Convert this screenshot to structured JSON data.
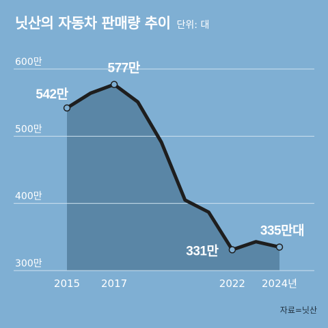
{
  "title": "닛산의 자동차 판매량 추이",
  "unit_label": "단위: 대",
  "source": "자료=닛산",
  "colors": {
    "background": "#7fafd3",
    "area_fill": "#5a86a6",
    "line": "#1e1e1e",
    "grid": "#cfe1ef",
    "marker_fill": "#7fafd3"
  },
  "chart_data": {
    "type": "area",
    "x": [
      2015,
      2016,
      2017,
      2018,
      2019,
      2020,
      2021,
      2022,
      2023,
      2024
    ],
    "x_tick_labels": [
      {
        "x": 2015,
        "label": "2015"
      },
      {
        "x": 2017,
        "label": "2017"
      },
      {
        "x": 2022,
        "label": "2022"
      },
      {
        "x": 2024,
        "label": "2024년"
      }
    ],
    "series": [
      {
        "values": [
          542,
          564,
          577,
          551,
          491,
          405,
          387,
          331,
          343,
          335
        ]
      }
    ],
    "y_unit": "만",
    "ylim": [
      300,
      600
    ],
    "y_ticks": [
      {
        "value": 600,
        "label": "600만"
      },
      {
        "value": 500,
        "label": "500만"
      },
      {
        "value": 400,
        "label": "400만"
      },
      {
        "value": 300,
        "label": "300만"
      }
    ],
    "data_labels": [
      {
        "x": 2015,
        "value": 542,
        "text": "542만"
      },
      {
        "x": 2017,
        "value": 577,
        "text": "577만"
      },
      {
        "x": 2022,
        "value": 331,
        "text": "331만"
      },
      {
        "x": 2024,
        "value": 335,
        "text": "335만대"
      }
    ],
    "markers_at": [
      2015,
      2017,
      2022,
      2024
    ],
    "grid": true,
    "xlabel": "",
    "ylabel": ""
  }
}
